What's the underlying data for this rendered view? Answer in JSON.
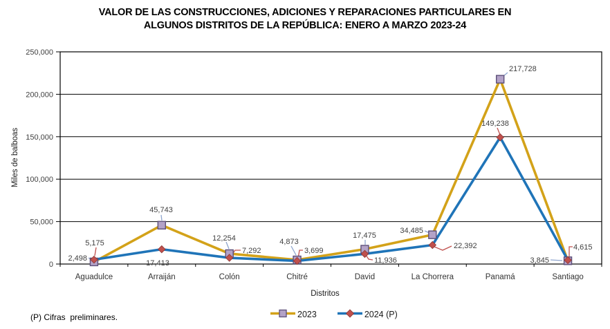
{
  "title": {
    "line1": "VALOR DE LAS CONSTRUCCIONES, ADICIONES Y REPARACIONES PARTICULARES EN",
    "line2": "ALGUNOS DISTRITOS DE LA REPÚBLICA: ENERO A MARZO 2023-24"
  },
  "footnote": "(P) Cifras  preliminares.",
  "chart_data": {
    "type": "line",
    "title": "VALOR DE LAS CONSTRUCCIONES, ADICIONES Y REPARACIONES PARTICULARES EN ALGUNOS DISTRITOS DE LA REPÚBLICA: ENERO A MARZO 2023-24",
    "categories": [
      "Aguadulce",
      "Arraiján",
      "Colón",
      "Chitré",
      "David",
      "La Chorrera",
      "Panamá",
      "Santiago"
    ],
    "series": [
      {
        "name": "2023",
        "marker": "square",
        "color": "#D3A219",
        "values": [
          2498,
          45743,
          12254,
          4873,
          17475,
          34485,
          217728,
          3845
        ]
      },
      {
        "name": "2024 (P)",
        "marker": "diamond",
        "color": "#1F74B8",
        "values": [
          5175,
          17413,
          7292,
          3699,
          11936,
          22392,
          149238,
          4615
        ]
      }
    ],
    "xlabel": "Distritos",
    "ylabel": "Miles de balboas",
    "ylim": [
      0,
      250000
    ],
    "y_ticks": [
      0,
      50000,
      100000,
      150000,
      200000,
      250000
    ],
    "grid": true,
    "legend_position": "bottom",
    "data_labels": true
  },
  "colors": {
    "square_fill": "#B3A2C7",
    "square_stroke": "#5C4F79",
    "diamond_fill": "#C0504D",
    "diamond_stroke": "#8C3836",
    "leader_2023": "#8EA5CE",
    "leader_2024": "#C0504D",
    "grid": "#000000",
    "axis_text": "#404040",
    "label_text": "#404040"
  }
}
